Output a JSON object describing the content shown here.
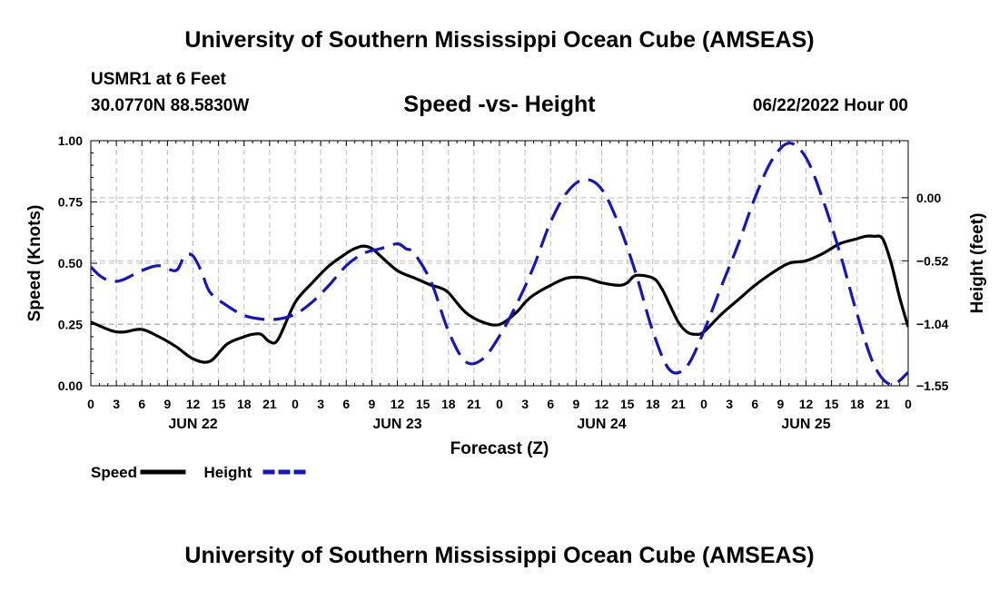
{
  "header": {
    "title": "University of Southern Mississippi Ocean Cube (AMSEAS)",
    "station": "USMR1 at 6 Feet",
    "coords": "30.0770N  88.5830W",
    "subtitle": "Speed -vs- Height",
    "datetime": "06/22/2022 Hour 00"
  },
  "footer": {
    "title": "University of Southern Mississippi Ocean Cube (AMSEAS)"
  },
  "chart_data": {
    "type": "line",
    "xlabel": "Forecast (Z)",
    "ylabel": "Speed (Knots)",
    "y2label": "Height (feet)",
    "xlim": [
      0,
      96
    ],
    "ylim": [
      0,
      1
    ],
    "y2lim": [
      -1.55,
      0.47
    ],
    "x_ticks": [
      0,
      3,
      6,
      9,
      12,
      15,
      18,
      21,
      24,
      27,
      30,
      33,
      36,
      39,
      42,
      45,
      48,
      51,
      54,
      57,
      60,
      63,
      66,
      69,
      72,
      75,
      78,
      81,
      84,
      87,
      90,
      93,
      96
    ],
    "x_tick_labels": [
      "0",
      "3",
      "6",
      "9",
      "12",
      "15",
      "18",
      "21",
      "0",
      "3",
      "6",
      "9",
      "12",
      "15",
      "18",
      "21",
      "0",
      "3",
      "6",
      "9",
      "12",
      "15",
      "18",
      "21",
      "0",
      "3",
      "6",
      "9",
      "12",
      "15",
      "18",
      "21",
      "0"
    ],
    "day_labels": [
      {
        "x": 12,
        "label": "JUN 22"
      },
      {
        "x": 36,
        "label": "JUN 23"
      },
      {
        "x": 60,
        "label": "JUN 24"
      },
      {
        "x": 84,
        "label": "JUN 25"
      }
    ],
    "y_ticks": [
      0,
      0.25,
      0.5,
      0.75,
      1.0
    ],
    "y_tick_labels": [
      "0.00",
      "0.25",
      "0.50",
      "0.75",
      "1.00"
    ],
    "y2_ticks": [
      0.0,
      -0.52,
      -1.04,
      -1.55
    ],
    "y2_tick_labels": [
      "0.00",
      "-0.52",
      "-1.04",
      "-1.55"
    ],
    "series": [
      {
        "name": "Speed",
        "axis": "left",
        "color": "#000000",
        "dash": "solid",
        "x": [
          0,
          2,
          3,
          4,
          6,
          8,
          10,
          12,
          14,
          16,
          18,
          19,
          20,
          21,
          22,
          24,
          26,
          28,
          30,
          31,
          32,
          33,
          34,
          36,
          38,
          40,
          41,
          42,
          44,
          46,
          48,
          50,
          51,
          52,
          54,
          56,
          58,
          60,
          62,
          63,
          64,
          66,
          67,
          68,
          69,
          70,
          71,
          72,
          74,
          76,
          78,
          80,
          82,
          84,
          86,
          88,
          90,
          91,
          92,
          93,
          94,
          95,
          96
        ],
        "values": [
          0.26,
          0.23,
          0.22,
          0.22,
          0.23,
          0.2,
          0.16,
          0.11,
          0.1,
          0.17,
          0.2,
          0.21,
          0.21,
          0.18,
          0.19,
          0.34,
          0.42,
          0.49,
          0.54,
          0.56,
          0.57,
          0.56,
          0.53,
          0.47,
          0.44,
          0.41,
          0.4,
          0.38,
          0.3,
          0.26,
          0.25,
          0.3,
          0.34,
          0.37,
          0.41,
          0.44,
          0.44,
          0.42,
          0.41,
          0.42,
          0.45,
          0.44,
          0.4,
          0.33,
          0.26,
          0.22,
          0.21,
          0.22,
          0.29,
          0.35,
          0.41,
          0.46,
          0.5,
          0.51,
          0.54,
          0.58,
          0.6,
          0.61,
          0.61,
          0.6,
          0.5,
          0.36,
          0.24
        ]
      },
      {
        "name": "Height",
        "axis": "right",
        "color": "#1414c8",
        "dash": "dashed",
        "x": [
          0,
          1,
          2,
          3,
          4,
          6,
          8,
          10,
          11,
          12,
          13,
          14,
          16,
          18,
          20,
          22,
          24,
          26,
          28,
          30,
          32,
          34,
          36,
          37,
          38,
          40,
          42,
          44,
          46,
          48,
          50,
          52,
          54,
          56,
          58,
          60,
          62,
          64,
          66,
          68,
          70,
          72,
          74,
          76,
          78,
          80,
          82,
          84,
          86,
          88,
          90,
          92,
          94,
          96
        ],
        "values": [
          -0.57,
          -0.64,
          -0.68,
          -0.69,
          -0.67,
          -0.6,
          -0.56,
          -0.6,
          -0.48,
          -0.48,
          -0.61,
          -0.78,
          -0.89,
          -0.97,
          -1.0,
          -1.0,
          -0.96,
          -0.86,
          -0.72,
          -0.56,
          -0.46,
          -0.42,
          -0.38,
          -0.42,
          -0.46,
          -0.7,
          -1.1,
          -1.35,
          -1.33,
          -1.14,
          -0.88,
          -0.57,
          -0.2,
          0.05,
          0.15,
          0.07,
          -0.22,
          -0.62,
          -1.1,
          -1.42,
          -1.39,
          -1.1,
          -0.74,
          -0.39,
          0.0,
          0.31,
          0.45,
          0.33,
          -0.02,
          -0.46,
          -0.96,
          -1.38,
          -1.54,
          -1.44
        ]
      }
    ],
    "legend": {
      "placement": "bottom-left",
      "entries": [
        {
          "label": "Speed",
          "color": "#000000",
          "dash": "solid"
        },
        {
          "label": "Height",
          "color": "#1414c8",
          "dash": "dashed"
        }
      ]
    }
  }
}
